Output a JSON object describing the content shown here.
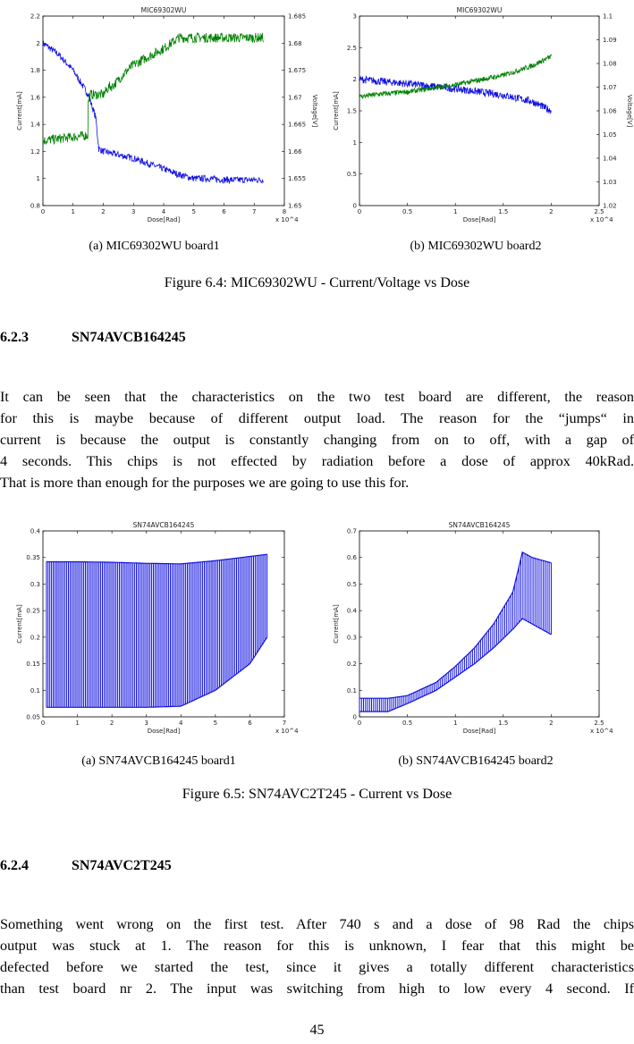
{
  "figure_6_4": {
    "caption": "Figure 6.4: MIC69302WU - Current/Voltage vs Dose",
    "subcaption_a": "(a) MIC69302WU board1",
    "subcaption_b": "(b) MIC69302WU board2"
  },
  "figure_6_5": {
    "caption": "Figure 6.5: SN74AVC2T245 - Current vs Dose",
    "subcaption_a": "(a) SN74AVCB164245 board1",
    "subcaption_b": "(b) SN74AVCB164245 board2"
  },
  "section_6_2_3": {
    "number": "6.2.3",
    "title": "SN74AVCB164245",
    "lines": [
      "It can be seen that the characteristics on the two test board are different, the reason",
      "for this is maybe because of different output load. The reason for the “jumps“ in",
      "current is because the output is constantly changing from on to off, with a gap of",
      "4 seconds. This chips is not effected by radiation before a dose of approx 40kRad.",
      "That is more than enough for the purposes we are going to use this for."
    ]
  },
  "section_6_2_4": {
    "number": "6.2.4",
    "title": "SN74AVC2T245",
    "lines": [
      "Something went wrong on the first test. After 740 s and a dose of 98 Rad the chips",
      "output was stuck at 1. The reason for this is unknown, I fear that this might be",
      "defected before we started the test, since it gives a totally different characteristics",
      "than test board nr 2. The input was switching from high to low every 4 second. If"
    ]
  },
  "page_number": "45",
  "colors": {
    "current": "#1010e0",
    "voltage": "#008000",
    "axis": "#000000"
  },
  "chart_data": [
    {
      "type": "line",
      "title": "MIC69302WU",
      "xlabel": "Dose[Rad]",
      "ylabel": "Current[mA]",
      "ylabel_right": "Voltage[V]",
      "x_exponent": "x 10^4",
      "xlim": [
        0,
        8
      ],
      "ylim": [
        0.8,
        2.2
      ],
      "ylim_right": [
        1.65,
        1.685
      ],
      "x_ticks": [
        "0",
        "1",
        "2",
        "3",
        "4",
        "5",
        "6",
        "7",
        "8"
      ],
      "y_ticks": [
        "0.8",
        "1",
        "1.2",
        "1.4",
        "1.6",
        "1.8",
        "2",
        "2.2"
      ],
      "y_ticks_right": [
        "1.65",
        "1.655",
        "1.66",
        "1.665",
        "1.67",
        "1.675",
        "1.68",
        "1.685"
      ],
      "series": [
        {
          "name": "Current",
          "axis": "left",
          "x": [
            0,
            0.5,
            1.0,
            1.5,
            1.75,
            1.85,
            2.0,
            3.0,
            4.0,
            4.5,
            5.0,
            5.5,
            6.0,
            7.0,
            7.3
          ],
          "y": [
            2.0,
            1.92,
            1.8,
            1.62,
            1.45,
            1.22,
            1.2,
            1.15,
            1.07,
            1.03,
            1.0,
            1.0,
            0.99,
            0.99,
            0.99
          ]
        },
        {
          "name": "Voltage",
          "axis": "right",
          "x": [
            0,
            1.5,
            1.5,
            1.55,
            1.6,
            2.0,
            2.2,
            2.3,
            2.8,
            3.0,
            4.0,
            4.5,
            7.3
          ],
          "y": [
            1.662,
            1.663,
            1.669,
            1.6705,
            1.6705,
            1.6705,
            1.672,
            1.672,
            1.675,
            1.676,
            1.679,
            1.681,
            1.681
          ]
        }
      ]
    },
    {
      "type": "line",
      "title": "MIC69302WU",
      "xlabel": "Dose[Rad]",
      "ylabel": "Current[mA]",
      "ylabel_right": "Voltage[V]",
      "x_exponent": "x 10^4",
      "xlim": [
        0,
        2.5
      ],
      "ylim": [
        0,
        3
      ],
      "ylim_right": [
        1.02,
        1.1
      ],
      "x_ticks": [
        "0",
        "0.5",
        "1",
        "1.5",
        "2",
        "2.5"
      ],
      "y_ticks": [
        "0",
        "0.5",
        "1",
        "1.5",
        "2",
        "2.5",
        "3"
      ],
      "y_ticks_right": [
        "1.02",
        "1.03",
        "1.04",
        "1.05",
        "1.06",
        "1.07",
        "1.08",
        "1.09",
        "1.1"
      ],
      "series": [
        {
          "name": "Current",
          "axis": "left",
          "x": [
            0,
            0.2,
            0.5,
            1.0,
            1.5,
            1.8,
            2.0
          ],
          "y": [
            2.0,
            1.97,
            1.93,
            1.85,
            1.75,
            1.65,
            1.5
          ]
        },
        {
          "name": "Voltage",
          "axis": "right",
          "x": [
            0,
            0.2,
            0.5,
            1.0,
            1.5,
            1.8,
            2.0
          ],
          "y": [
            1.066,
            1.067,
            1.068,
            1.071,
            1.075,
            1.079,
            1.083
          ]
        }
      ]
    },
    {
      "type": "line",
      "title": "SN74AVCB164245",
      "xlabel": "Dose[Rad]",
      "ylabel": "Current[mA]",
      "x_exponent": "x 10^4",
      "xlim": [
        0,
        7
      ],
      "ylim": [
        0.05,
        0.4
      ],
      "x_ticks": [
        "0",
        "1",
        "2",
        "3",
        "4",
        "5",
        "6",
        "7"
      ],
      "y_ticks": [
        "0.05",
        "0.1",
        "0.15",
        "0.2",
        "0.25",
        "0.3",
        "0.35",
        "0.4"
      ],
      "series": [
        {
          "name": "Current high",
          "x": [
            0.1,
            1.0,
            2.0,
            3.0,
            4.0,
            5.0,
            6.0,
            6.5
          ],
          "y": [
            0.342,
            0.342,
            0.341,
            0.339,
            0.338,
            0.344,
            0.352,
            0.356
          ]
        },
        {
          "name": "Current low",
          "x": [
            0.1,
            1.0,
            2.0,
            3.0,
            4.0,
            5.0,
            6.0,
            6.5
          ],
          "y": [
            0.068,
            0.068,
            0.068,
            0.068,
            0.07,
            0.1,
            0.15,
            0.2
          ]
        }
      ]
    },
    {
      "type": "line",
      "title": "SN74AVCB164245",
      "xlabel": "Dose[Rad]",
      "ylabel": "Current[mA]",
      "x_exponent": "x 10^4",
      "xlim": [
        0,
        2.5
      ],
      "ylim": [
        0,
        0.7
      ],
      "x_ticks": [
        "0",
        "0.5",
        "1",
        "1.5",
        "2",
        "2.5"
      ],
      "y_ticks": [
        "0",
        "0.1",
        "0.2",
        "0.3",
        "0.4",
        "0.5",
        "0.6",
        "0.7"
      ],
      "series": [
        {
          "name": "Current high",
          "x": [
            0.0,
            0.3,
            0.5,
            0.8,
            1.0,
            1.2,
            1.4,
            1.6,
            1.7,
            1.8,
            2.0
          ],
          "y": [
            0.07,
            0.07,
            0.08,
            0.13,
            0.19,
            0.26,
            0.35,
            0.47,
            0.62,
            0.6,
            0.58
          ]
        },
        {
          "name": "Current low",
          "x": [
            0.0,
            0.3,
            0.5,
            0.8,
            1.0,
            1.2,
            1.4,
            1.6,
            1.7,
            1.8,
            2.0
          ],
          "y": [
            0.02,
            0.02,
            0.05,
            0.1,
            0.15,
            0.2,
            0.26,
            0.33,
            0.37,
            0.35,
            0.31
          ]
        }
      ]
    }
  ]
}
